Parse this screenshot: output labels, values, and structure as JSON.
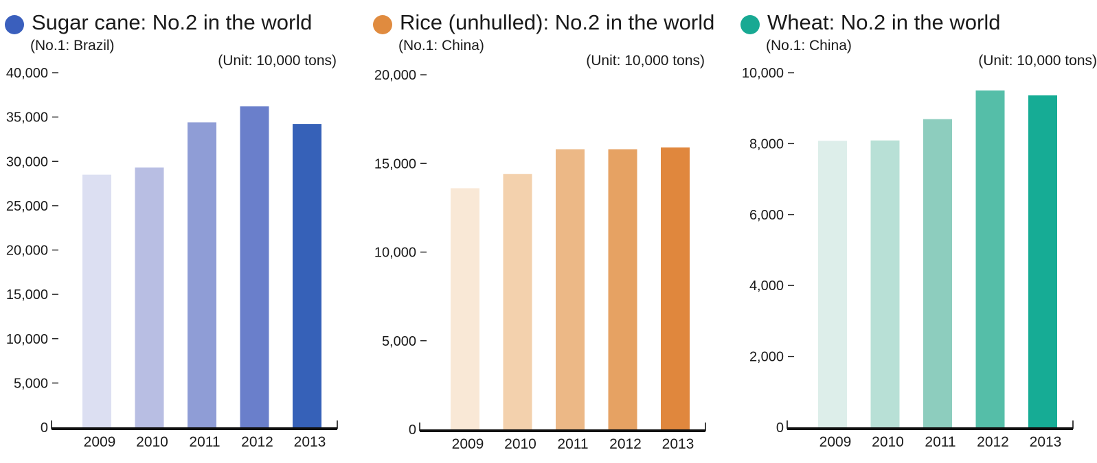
{
  "chart_data": [
    {
      "type": "bar",
      "title": "Sugar cane: No.2 in the world",
      "subtitle": "(No.1: Brazil)",
      "unit_label": "(Unit: 10,000 tons)",
      "marker_color": "#3a5fbd",
      "categories": [
        "2009",
        "2010",
        "2011",
        "2012",
        "2013"
      ],
      "values": [
        28500,
        29300,
        34400,
        36200,
        34200
      ],
      "bar_colors": [
        "#dcdff2",
        "#b8bee3",
        "#8f9dd6",
        "#6a7fcb",
        "#3661b8"
      ],
      "yticks": [
        0,
        5000,
        10000,
        15000,
        20000,
        25000,
        30000,
        35000,
        40000
      ],
      "ytick_labels": [
        "0",
        "5,000",
        "10,000",
        "15,000",
        "20,000",
        "25,000",
        "30,000",
        "35,000",
        "40,000"
      ],
      "ylim": [
        0,
        40000
      ],
      "grid": false
    },
    {
      "type": "bar",
      "title": "Rice (unhulled): No.2 in the world",
      "subtitle": "(No.1: China)",
      "unit_label": "(Unit: 10,000 tons)",
      "marker_color": "#e08b3f",
      "categories": [
        "2009",
        "2010",
        "2011",
        "2012",
        "2013"
      ],
      "values": [
        13600,
        14400,
        15800,
        15800,
        15900
      ],
      "bar_colors": [
        "#f9e8d6",
        "#f3d1ad",
        "#ecb886",
        "#e6a263",
        "#e0873d"
      ],
      "yticks": [
        0,
        5000,
        10000,
        15000,
        20000
      ],
      "ytick_labels": [
        "0",
        "5,000",
        "10,000",
        "15,000",
        "20,000"
      ],
      "ylim": [
        0,
        20000
      ],
      "grid": false
    },
    {
      "type": "bar",
      "title": "Wheat: No.2 in the world",
      "subtitle": "(No.1: China)",
      "unit_label": "(Unit: 10,000 tons)",
      "marker_color": "#18a993",
      "categories": [
        "2009",
        "2010",
        "2011",
        "2012",
        "2013"
      ],
      "values": [
        8080,
        8090,
        8690,
        9500,
        9360
      ],
      "bar_colors": [
        "#ddeeea",
        "#b8e0d6",
        "#8dcdbe",
        "#55bea8",
        "#16ac95"
      ],
      "yticks": [
        0,
        2000,
        4000,
        6000,
        8000,
        10000
      ],
      "ytick_labels": [
        "0",
        "2,000",
        "4,000",
        "6,000",
        "8,000",
        "10,000"
      ],
      "ylim": [
        0,
        10000
      ],
      "grid": false
    }
  ]
}
